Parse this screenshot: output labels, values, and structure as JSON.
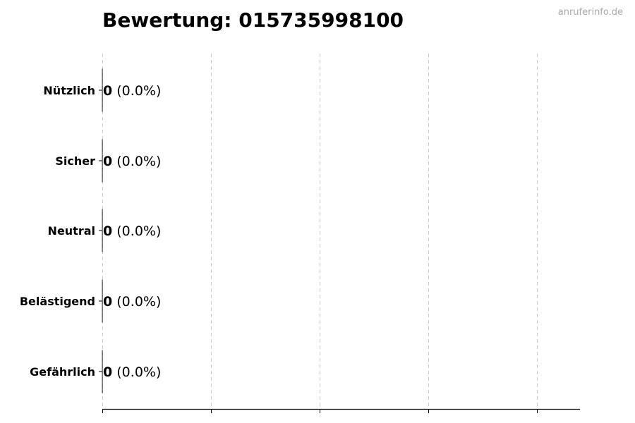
{
  "chart_data": {
    "type": "bar",
    "orientation": "horizontal",
    "title": "Bewertung: 015735998100",
    "categories": [
      "Nützlich",
      "Sicher",
      "Neutral",
      "Belästigend",
      "Gefährlich"
    ],
    "values": [
      0,
      0,
      0,
      0,
      0
    ],
    "value_labels": [
      "0",
      "0",
      "0",
      "0",
      "0"
    ],
    "percent_labels": [
      "(0.0%)",
      "(0.0%)",
      "(0.0%)",
      "(0.0%)",
      "(0.0%)"
    ],
    "grid": "x, dashed",
    "xlabel": "",
    "ylabel": "",
    "bar_edge_color": "#333333"
  },
  "watermark": "anruferinfo.de"
}
